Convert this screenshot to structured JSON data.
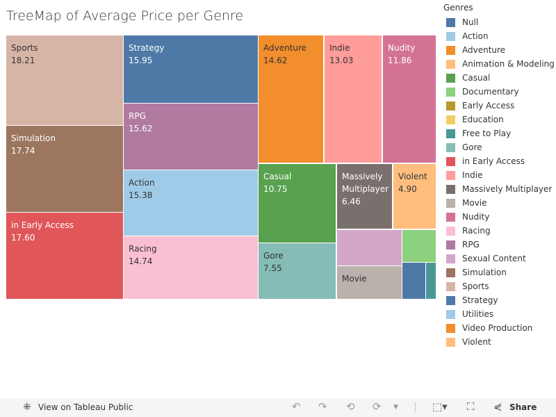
{
  "chart_data": {
    "type": "treemap",
    "title": "TreeMap of Average Price per Genre",
    "legend_title": "Genres",
    "legend": [
      {
        "name": "Null",
        "color": "#4e79a7"
      },
      {
        "name": "Action",
        "color": "#a0cbe8"
      },
      {
        "name": "Adventure",
        "color": "#f28e2b"
      },
      {
        "name": "Animation & Modeling",
        "color": "#ffbe7d"
      },
      {
        "name": "Casual",
        "color": "#59a14f"
      },
      {
        "name": "Documentary",
        "color": "#8cd17d"
      },
      {
        "name": "Early Access",
        "color": "#b6992d"
      },
      {
        "name": "Education",
        "color": "#f1ce63"
      },
      {
        "name": "Free to Play",
        "color": "#499894"
      },
      {
        "name": "Gore",
        "color": "#86bcb6"
      },
      {
        "name": "in Early Access",
        "color": "#e15759"
      },
      {
        "name": "Indie",
        "color": "#ff9d9a"
      },
      {
        "name": "Massively Multiplayer",
        "color": "#79706e"
      },
      {
        "name": "Movie",
        "color": "#bab0ac"
      },
      {
        "name": "Nudity",
        "color": "#d37295"
      },
      {
        "name": "Racing",
        "color": "#fabfd2"
      },
      {
        "name": "RPG",
        "color": "#b07aa1"
      },
      {
        "name": "Sexual Content",
        "color": "#d4a6c8"
      },
      {
        "name": "Simulation",
        "color": "#9d7660"
      },
      {
        "name": "Sports",
        "color": "#d7b5a6"
      },
      {
        "name": "Strategy",
        "color": "#4e79a7"
      },
      {
        "name": "Utilities",
        "color": "#a0cbe8"
      },
      {
        "name": "Video Production",
        "color": "#f28e2b"
      },
      {
        "name": "Violent",
        "color": "#ffbe7d"
      }
    ],
    "tiles": [
      {
        "label": "Sports",
        "value": "18.21",
        "color": "#d7b5a6",
        "dark": true
      },
      {
        "label": "Simulation",
        "value": "17.74",
        "color": "#9d7660"
      },
      {
        "label": "in Early Access",
        "value": "17.60",
        "color": "#e15759"
      },
      {
        "label": "Strategy",
        "value": "15.95",
        "color": "#4e79a7"
      },
      {
        "label": "RPG",
        "value": "15.62",
        "color": "#b07aa1"
      },
      {
        "label": "Action",
        "value": "15.38",
        "color": "#a0cbe8",
        "dark": true
      },
      {
        "label": "Racing",
        "value": "14.74",
        "color": "#fabfd2",
        "dark": true
      },
      {
        "label": "Adventure",
        "value": "14.62",
        "color": "#f28e2b",
        "dark": true
      },
      {
        "label": "Indie",
        "value": "13.03",
        "color": "#ff9d9a",
        "dark": true
      },
      {
        "label": "Nudity",
        "value": "11.86",
        "color": "#d37295"
      },
      {
        "label": "Casual",
        "value": "10.75",
        "color": "#59a14f"
      },
      {
        "label": "Gore",
        "value": "7.55",
        "color": "#86bcb6",
        "dark": true
      },
      {
        "label": "Massively Multiplayer",
        "value": "6.46",
        "color": "#79706e"
      },
      {
        "label": "Violent",
        "value": "4.90",
        "color": "#ffbe7d",
        "dark": true
      },
      {
        "label": "",
        "value": "",
        "color": "#d4a6c8"
      },
      {
        "label": "Movie",
        "value": "",
        "color": "#bab0ac",
        "dark": true
      },
      {
        "label": "",
        "value": "",
        "color": "#8cd17d"
      },
      {
        "label": "",
        "value": "",
        "color": "#4e79a7"
      },
      {
        "label": "",
        "value": "",
        "color": "#499894"
      }
    ]
  },
  "toolbar": {
    "view_label": "View on Tableau Public",
    "share_label": "Share"
  }
}
